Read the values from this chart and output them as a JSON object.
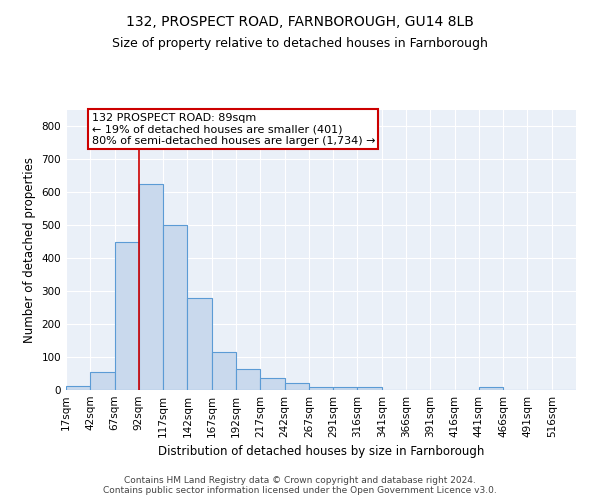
{
  "title": "132, PROSPECT ROAD, FARNBOROUGH, GU14 8LB",
  "subtitle": "Size of property relative to detached houses in Farnborough",
  "xlabel": "Distribution of detached houses by size in Farnborough",
  "ylabel": "Number of detached properties",
  "footer_line1": "Contains HM Land Registry data © Crown copyright and database right 2024.",
  "footer_line2": "Contains public sector information licensed under the Open Government Licence v3.0.",
  "bin_labels": [
    "17sqm",
    "42sqm",
    "67sqm",
    "92sqm",
    "117sqm",
    "142sqm",
    "167sqm",
    "192sqm",
    "217sqm",
    "242sqm",
    "267sqm",
    "291sqm",
    "316sqm",
    "341sqm",
    "366sqm",
    "391sqm",
    "416sqm",
    "441sqm",
    "466sqm",
    "491sqm",
    "516sqm"
  ],
  "bar_values": [
    12,
    55,
    450,
    625,
    500,
    280,
    115,
    63,
    37,
    22,
    10,
    10,
    9,
    0,
    0,
    0,
    0,
    8,
    0,
    0,
    0
  ],
  "bar_color": "#c9d9ed",
  "bar_edge_color": "#5b9bd5",
  "vline_color": "#cc0000",
  "vline_x_bin": 3,
  "annotation_text": "132 PROSPECT ROAD: 89sqm\n← 19% of detached houses are smaller (401)\n80% of semi-detached houses are larger (1,734) →",
  "ylim": [
    0,
    850
  ],
  "yticks": [
    0,
    100,
    200,
    300,
    400,
    500,
    600,
    700,
    800
  ],
  "background_color": "#eaf0f8",
  "grid_color": "#ffffff",
  "title_fontsize": 10,
  "subtitle_fontsize": 9,
  "axis_label_fontsize": 8.5,
  "tick_fontsize": 7.5,
  "annotation_fontsize": 8,
  "footer_fontsize": 6.5
}
